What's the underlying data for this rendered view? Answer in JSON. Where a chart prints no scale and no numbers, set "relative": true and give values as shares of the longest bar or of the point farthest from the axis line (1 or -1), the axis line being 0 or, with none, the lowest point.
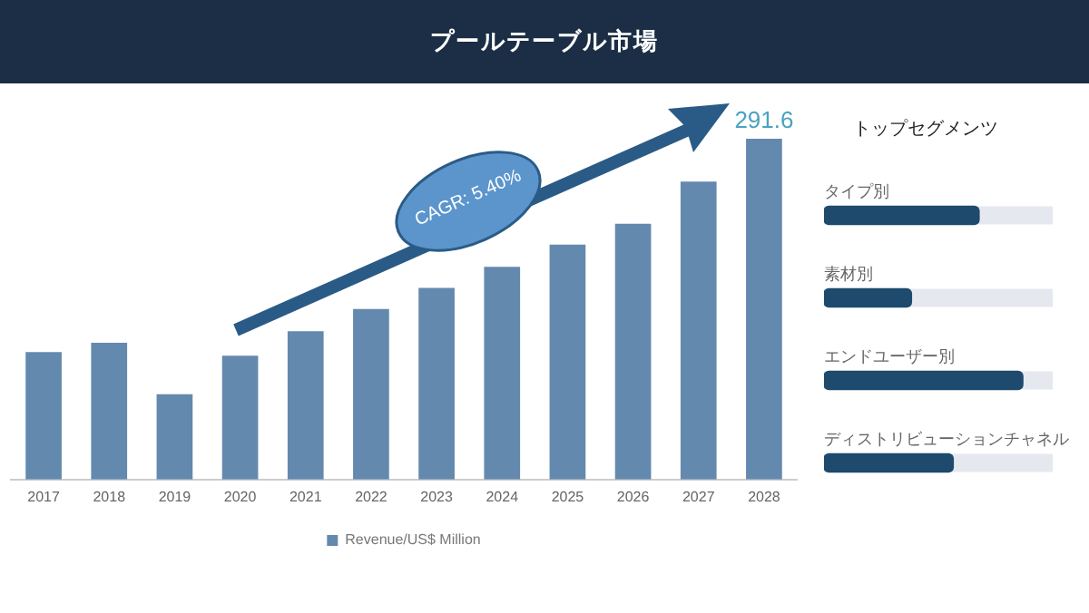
{
  "chart_data": [
    {
      "type": "bar",
      "title": "プールテーブル市場",
      "tick_labels": "x",
      "categories": [
        "2017",
        "2018",
        "2019",
        "2020",
        "2021",
        "2022",
        "2023",
        "2024",
        "2025",
        "2026",
        "2027",
        "2028"
      ],
      "series": [
        {
          "name": "Revenue/US$ Million",
          "color": "#6489ae",
          "values": [
            109,
            117,
            73,
            106,
            127,
            146,
            164,
            182,
            201,
            219,
            255,
            291.6
          ],
          "value_labels": [
            null,
            null,
            null,
            null,
            null,
            null,
            null,
            null,
            null,
            null,
            null,
            "291.6"
          ]
        }
      ],
      "legend": "bottom",
      "grid": false,
      "annotations": [
        "CAGR: 5.40%"
      ]
    },
    {
      "type": "bar",
      "title": "トップセグメンツ",
      "relative": true,
      "orientation": "horizontal",
      "categories": [
        "タイプ別",
        "素材別",
        "エンドユーザー別",
        "ディストリビューションチャネル"
      ],
      "series": [
        {
          "color": "#1d4a6d",
          "values": [
            0.78,
            0.44,
            1,
            0.65
          ]
        }
      ],
      "legend": false,
      "grid": false
    }
  ]
}
